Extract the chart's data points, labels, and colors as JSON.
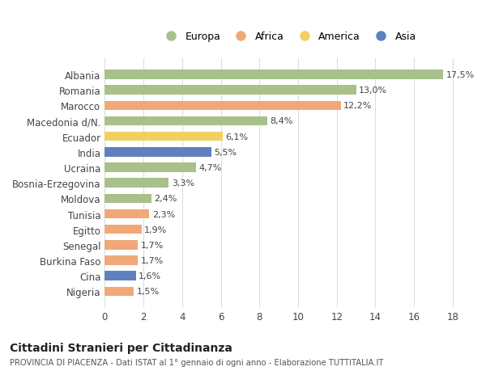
{
  "categories": [
    "Albania",
    "Romania",
    "Marocco",
    "Macedonia d/N.",
    "Ecuador",
    "India",
    "Ucraina",
    "Bosnia-Erzegovina",
    "Moldova",
    "Tunisia",
    "Egitto",
    "Senegal",
    "Burkina Faso",
    "Cina",
    "Nigeria"
  ],
  "values": [
    17.5,
    13.0,
    12.2,
    8.4,
    6.1,
    5.5,
    4.7,
    3.3,
    2.4,
    2.3,
    1.9,
    1.7,
    1.7,
    1.6,
    1.5
  ],
  "labels": [
    "17,5%",
    "13,0%",
    "12,2%",
    "8,4%",
    "6,1%",
    "5,5%",
    "4,7%",
    "3,3%",
    "2,4%",
    "2,3%",
    "1,9%",
    "1,7%",
    "1,7%",
    "1,6%",
    "1,5%"
  ],
  "continents": [
    "Europa",
    "Europa",
    "Africa",
    "Europa",
    "America",
    "Asia",
    "Europa",
    "Europa",
    "Europa",
    "Africa",
    "Africa",
    "Africa",
    "Africa",
    "Asia",
    "Africa"
  ],
  "colors": {
    "Europa": "#a8c08a",
    "Africa": "#f0a878",
    "America": "#f0d060",
    "Asia": "#6080c0"
  },
  "legend_order": [
    "Europa",
    "Africa",
    "America",
    "Asia"
  ],
  "title": "Cittadini Stranieri per Cittadinanza",
  "subtitle": "PROVINCIA DI PIACENZA - Dati ISTAT al 1° gennaio di ogni anno - Elaborazione TUTTITALIA.IT",
  "xlim": [
    0,
    19
  ],
  "xticks": [
    0,
    2,
    4,
    6,
    8,
    10,
    12,
    14,
    16,
    18
  ],
  "background_color": "#ffffff",
  "grid_color": "#dddddd"
}
